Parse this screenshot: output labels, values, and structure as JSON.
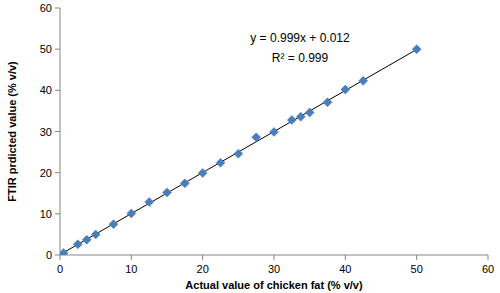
{
  "chart_data": {
    "type": "scatter",
    "x_label": "Actual value of chicken fat (% v/v)",
    "y_label": "FTIR prdicted value (% v/v)",
    "annotations": [
      "y = 0.999x + 0.012",
      "R² = 0.999"
    ],
    "x": [
      0.5,
      2.5,
      3.75,
      5,
      7.5,
      10,
      12.5,
      15,
      17.5,
      20,
      22.5,
      25,
      27.5,
      30,
      32.5,
      33.75,
      35,
      37.5,
      40,
      42.5,
      50
    ],
    "series": [
      {
        "values": [
          0.5,
          2.6,
          3.7,
          5.0,
          7.5,
          10.1,
          12.9,
          15.2,
          17.4,
          19.9,
          22.4,
          24.6,
          28.6,
          29.9,
          32.8,
          33.6,
          34.6,
          37.1,
          40.2,
          42.3,
          50.0
        ],
        "color": "#4a7ebb",
        "marker": "diamond"
      }
    ],
    "xlim": [
      0,
      60
    ],
    "ylim": [
      0,
      60
    ],
    "xticks": [
      0,
      10,
      20,
      30,
      40,
      50,
      60
    ],
    "yticks": [
      0,
      10,
      20,
      30,
      40,
      50,
      60
    ],
    "grid": false
  }
}
